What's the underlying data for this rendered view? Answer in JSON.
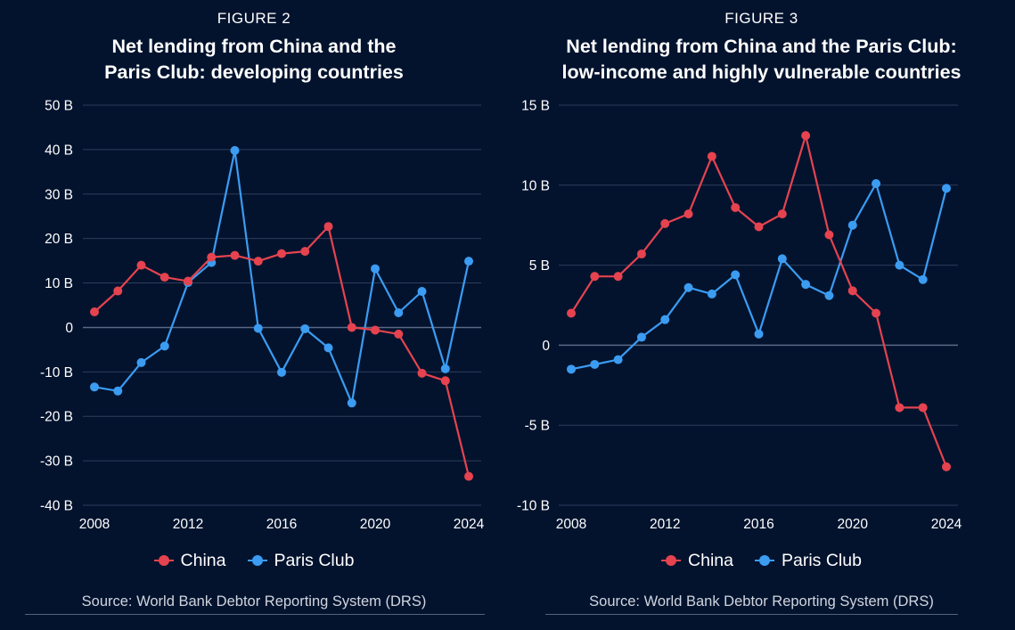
{
  "colors": {
    "background": "#03132e",
    "grid": "#2e3d5a",
    "china": "#e5434f",
    "paris_club": "#3b9cf2",
    "text": "#ffffff",
    "source_text": "#d0d5de"
  },
  "chart_data": [
    {
      "type": "line",
      "figure_label": "FIGURE 2",
      "title_lines": [
        "Net lending from China and the",
        "Paris Club: developing countries"
      ],
      "x": [
        2008,
        2009,
        2010,
        2011,
        2012,
        2013,
        2014,
        2015,
        2016,
        2017,
        2018,
        2019,
        2020,
        2021,
        2022,
        2023,
        2024
      ],
      "x_ticks": [
        2008,
        2012,
        2016,
        2020,
        2024
      ],
      "x_tick_labels": [
        "2008",
        "2012",
        "2016",
        "2020",
        "2024"
      ],
      "ylim": [
        -40,
        50
      ],
      "y_ticks": [
        50,
        40,
        30,
        20,
        10,
        0,
        -10,
        -20,
        -30,
        -40
      ],
      "y_tick_labels": [
        "50 B",
        "40 B",
        "30 B",
        "20 B",
        "10 B",
        "0",
        "-10 B",
        "-20 B",
        "-30 B",
        "-40 B"
      ],
      "grid": true,
      "series": [
        {
          "name": "China",
          "color": "#e5434f",
          "values": [
            3.5,
            8.2,
            14.0,
            11.3,
            10.4,
            15.8,
            16.2,
            14.9,
            16.6,
            17.1,
            22.7,
            0.0,
            -0.6,
            -1.5,
            -10.3,
            -12.0,
            -33.5
          ]
        },
        {
          "name": "Paris Club",
          "color": "#3b9cf2",
          "values": [
            -13.4,
            -14.3,
            -7.9,
            -4.2,
            10.1,
            14.6,
            39.8,
            -0.2,
            -10.1,
            -0.3,
            -4.6,
            -17.0,
            13.2,
            3.3,
            8.1,
            -9.3,
            14.9
          ]
        }
      ],
      "legend": [
        "China",
        "Paris Club"
      ],
      "legend_position": "bottom",
      "source": "Source: World Bank Debtor Reporting System (DRS)"
    },
    {
      "type": "line",
      "figure_label": "FIGURE 3",
      "title_lines": [
        "Net lending from China and the Paris Club:",
        "low-income and highly vulnerable countries"
      ],
      "x": [
        2008,
        2009,
        2010,
        2011,
        2012,
        2013,
        2014,
        2015,
        2016,
        2017,
        2018,
        2019,
        2020,
        2021,
        2022,
        2023,
        2024
      ],
      "x_ticks": [
        2008,
        2012,
        2016,
        2020,
        2024
      ],
      "x_tick_labels": [
        "2008",
        "2012",
        "2016",
        "2020",
        "2024"
      ],
      "ylim": [
        -10,
        15
      ],
      "y_ticks": [
        15,
        10,
        5,
        0,
        -5,
        -10
      ],
      "y_tick_labels": [
        "15 B",
        "10 B",
        "5 B",
        "0",
        "-5 B",
        "-10 B"
      ],
      "grid": true,
      "series": [
        {
          "name": "China",
          "color": "#e5434f",
          "values": [
            2.0,
            4.3,
            4.3,
            5.7,
            7.6,
            8.2,
            11.8,
            8.6,
            7.4,
            8.2,
            13.1,
            6.9,
            3.4,
            2.0,
            -3.9,
            -3.9,
            -7.6
          ]
        },
        {
          "name": "Paris Club",
          "color": "#3b9cf2",
          "values": [
            -1.5,
            -1.2,
            -0.9,
            0.5,
            1.6,
            3.6,
            3.2,
            4.4,
            0.7,
            5.4,
            3.8,
            3.1,
            7.5,
            10.1,
            5.0,
            4.1,
            9.8
          ]
        }
      ],
      "legend": [
        "China",
        "Paris Club"
      ],
      "legend_position": "bottom",
      "source": "Source: World Bank Debtor Reporting System (DRS)"
    }
  ]
}
